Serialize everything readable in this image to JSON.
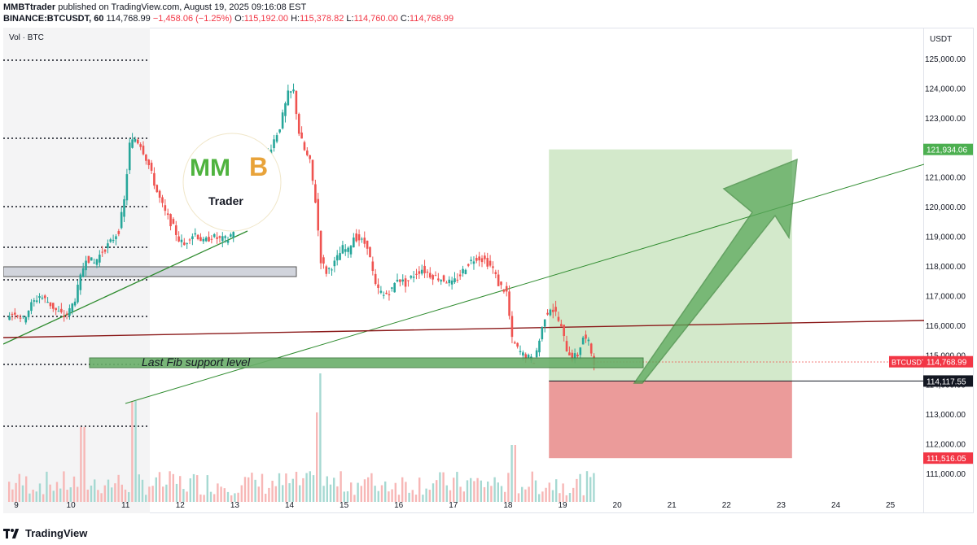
{
  "header": {
    "publisher": "MMBTtrader",
    "published_text": "published on TradingView.com, August 19, 2025 09:16:08 EST",
    "symbol": "BINANCE:BTCUSDT, 60",
    "last": "114,768.99",
    "change": "−1,458.06 (−1.25%)",
    "o_label": "O:",
    "o": "115,192.00",
    "h_label": "H:",
    "h": "115,378.82",
    "l_label": "L:",
    "l": "114,760.00",
    "c_label": "C:",
    "c": "114,768.99"
  },
  "pane": {
    "vol_label": "Vol · BTC",
    "currency": "USDT"
  },
  "y_ticks": [
    "125,000.00",
    "124,000.00",
    "123,000.00",
    "122,000.00",
    "121,000.00",
    "120,000.00",
    "119,000.00",
    "118,000.00",
    "117,000.00",
    "116,000.00",
    "115,000.00",
    "114,000.00",
    "113,000.00",
    "112,000.00",
    "111,000.00"
  ],
  "y_tick_values": [
    125000,
    124000,
    123000,
    122000,
    121000,
    120000,
    119000,
    118000,
    117000,
    116000,
    115000,
    114000,
    113000,
    112000,
    111000
  ],
  "x_ticks": [
    "9",
    "10",
    "11",
    "12",
    "13",
    "14",
    "15",
    "16",
    "17",
    "18",
    "19",
    "20",
    "21",
    "22",
    "23",
    "24",
    "25"
  ],
  "price_tags": {
    "target": "121,934.06",
    "symbol_tag": "BTCUSDT",
    "current": "114,768.99",
    "entry": "114,117.55",
    "stop": "111,516.05"
  },
  "price_levels": {
    "target": 121934.06,
    "current": 114768.99,
    "entry": 114117.55,
    "stop": 111516.05
  },
  "annotation": "Last Fib support level",
  "logo": {
    "letters": "MMB",
    "sub": "Trader"
  },
  "footer": {
    "brand": "TradingView"
  },
  "colors": {
    "up": "#26a69a",
    "down": "#ef5350",
    "target_zone": "#d3e9cb",
    "stop_zone": "#eb9b9a",
    "arrow": "#5aa85a",
    "trend_red": "#8b1a1a"
  },
  "chart_data": {
    "type": "candlestick",
    "x_labels": [
      "9",
      "10",
      "11",
      "12",
      "13",
      "14",
      "15",
      "16",
      "17",
      "18",
      "19",
      "20",
      "21",
      "22",
      "23",
      "24",
      "25"
    ],
    "ylim": [
      110500,
      125700
    ],
    "close_path": [
      [
        8.85,
        116300
      ],
      [
        9.0,
        116450
      ],
      [
        9.15,
        116200
      ],
      [
        9.3,
        116700
      ],
      [
        9.45,
        117000
      ],
      [
        9.6,
        116800
      ],
      [
        9.75,
        116500
      ],
      [
        9.9,
        116300
      ],
      [
        10.0,
        116500
      ],
      [
        10.1,
        116900
      ],
      [
        10.2,
        117600
      ],
      [
        10.3,
        118300
      ],
      [
        10.45,
        118100
      ],
      [
        10.6,
        118500
      ],
      [
        10.75,
        118800
      ],
      [
        10.9,
        119200
      ],
      [
        11.0,
        120200
      ],
      [
        11.1,
        122100
      ],
      [
        11.2,
        122300
      ],
      [
        11.3,
        122100
      ],
      [
        11.45,
        121400
      ],
      [
        11.6,
        120500
      ],
      [
        11.75,
        119800
      ],
      [
        11.9,
        119300
      ],
      [
        12.0,
        118900
      ],
      [
        12.1,
        118700
      ],
      [
        12.2,
        119000
      ],
      [
        12.3,
        119100
      ],
      [
        12.45,
        118800
      ],
      [
        12.6,
        119000
      ],
      [
        12.75,
        118900
      ],
      [
        12.9,
        118900
      ],
      [
        13.0,
        119200
      ],
      [
        13.85,
        122700
      ],
      [
        14.0,
        123800
      ],
      [
        14.1,
        123900
      ],
      [
        14.2,
        122500
      ],
      [
        14.3,
        121900
      ],
      [
        14.4,
        121500
      ],
      [
        14.5,
        120200
      ],
      [
        14.6,
        118200
      ],
      [
        14.7,
        117800
      ],
      [
        14.85,
        118100
      ],
      [
        15.0,
        118600
      ],
      [
        15.1,
        118500
      ],
      [
        15.2,
        119000
      ],
      [
        15.3,
        118900
      ],
      [
        15.45,
        118700
      ],
      [
        15.6,
        117300
      ],
      [
        15.75,
        117000
      ],
      [
        15.9,
        117200
      ],
      [
        16.0,
        117600
      ],
      [
        16.15,
        117400
      ],
      [
        16.3,
        117700
      ],
      [
        16.45,
        117900
      ],
      [
        16.6,
        117700
      ],
      [
        16.75,
        117600
      ],
      [
        16.9,
        117500
      ],
      [
        17.0,
        117400
      ],
      [
        17.15,
        117700
      ],
      [
        17.3,
        118100
      ],
      [
        17.45,
        118300
      ],
      [
        17.6,
        118200
      ],
      [
        17.75,
        117900
      ],
      [
        17.85,
        117400
      ],
      [
        18.0,
        117100
      ],
      [
        18.1,
        115500
      ],
      [
        18.2,
        115200
      ],
      [
        18.3,
        115000
      ],
      [
        18.4,
        114900
      ],
      [
        18.5,
        114800
      ],
      [
        18.6,
        115500
      ],
      [
        18.7,
        116300
      ],
      [
        18.8,
        116600
      ],
      [
        18.9,
        116400
      ],
      [
        19.0,
        115900
      ],
      [
        19.1,
        115200
      ],
      [
        19.2,
        114900
      ],
      [
        19.3,
        115000
      ],
      [
        19.4,
        115600
      ],
      [
        19.5,
        115400
      ],
      [
        19.6,
        114769
      ]
    ]
  }
}
